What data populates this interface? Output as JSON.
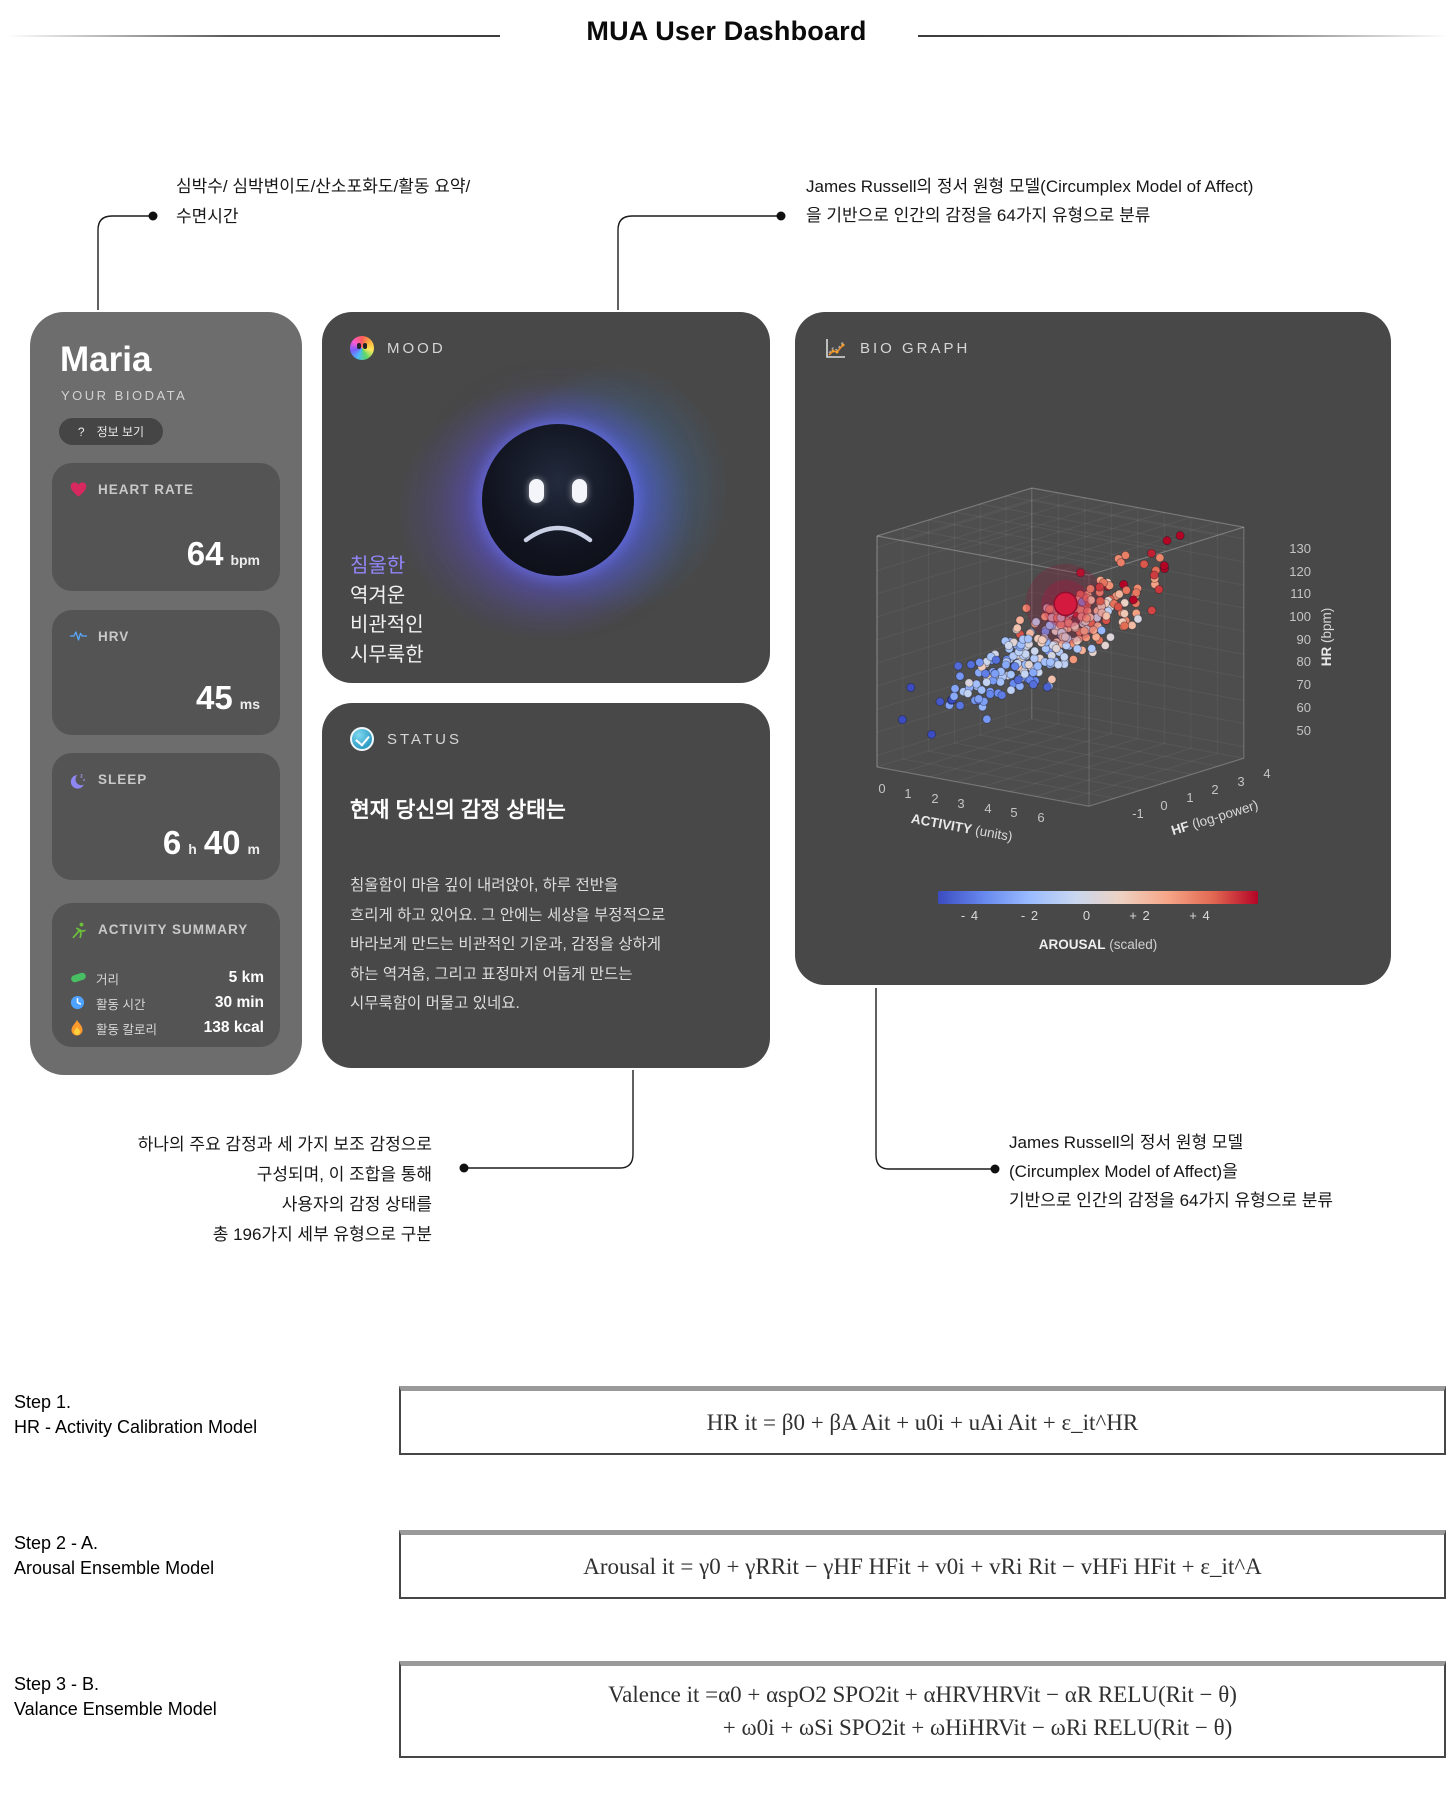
{
  "title": "MUA User Dashboard",
  "annotations": {
    "top_left": {
      "line1": "심박수/ 심박변이도/산소포화도/활동 요약/",
      "line2": "수면시간"
    },
    "top_right": {
      "line1": "James Russell의 정서 원형 모델(Circumplex Model of Affect)",
      "line2": "을 기반으로 인간의 감정을 64가지 유형으로 분류"
    },
    "bottom_left": {
      "line1": "하나의 주요 감정과 세 가지 보조 감정으로",
      "line2": "구성되며, 이 조합을 통해",
      "line3": "사용자의 감정 상태를",
      "line4": "총 196가지 세부 유형으로 구분"
    },
    "bottom_right": {
      "line1": "James Russell의 정서 원형 모델",
      "line2": "(Circumplex Model of Affect)을",
      "line3": "기반으로 인간의 감정을 64가지 유형으로 분류"
    }
  },
  "profile": {
    "name": "Maria",
    "subtitle": "YOUR BIODATA",
    "info_icon": "?",
    "info_label": "정보 보기",
    "heart": {
      "label": "HEART RATE",
      "value": "64",
      "unit": "bpm"
    },
    "hrv": {
      "label": "HRV",
      "value": "45",
      "unit": "ms"
    },
    "sleep": {
      "label": "SLEEP",
      "hours": "6",
      "h_unit": "h",
      "minutes": "40",
      "m_unit": "m"
    },
    "activity": {
      "label": "ACTIVITY SUMMARY",
      "rows": [
        {
          "label": "거리",
          "value": "5 km"
        },
        {
          "label": "활동 시간",
          "value": "30 min"
        },
        {
          "label": "활동 칼로리",
          "value": "138 kcal"
        }
      ]
    }
  },
  "mood": {
    "label": "MOOD",
    "words": [
      "침울한",
      "역겨운",
      "비관적인",
      "시무룩한"
    ],
    "highlight_color": "#9186f8"
  },
  "status": {
    "label": "STATUS",
    "heading": "현재 당신의 감정 상태는",
    "lines": [
      "침울함이 마음 깊이 내려앉아, 하루 전반을",
      "흐리게 하고 있어요. 그 안에는 세상을 부정적으로",
      "바라보게 만드는 비관적인 기운과, 감정을 상하게",
      "하는 역겨움, 그리고 표정마저 어둡게 만드는",
      "시무룩함이 머물고 있네요."
    ]
  },
  "bio": {
    "label": "BIO GRAPH"
  },
  "chart_data": {
    "type": "scatter3d",
    "title": "BIO GRAPH",
    "axes": {
      "x": {
        "label_main": "ACTIVITY",
        "label_sub": " (units)",
        "ticks": [
          "0",
          "1",
          "2",
          "3",
          "4",
          "5",
          "6"
        ],
        "range": [
          0,
          8
        ]
      },
      "y": {
        "label_main": "HF",
        "label_sub": " (log-power)",
        "ticks": [
          "-1",
          "0",
          "1",
          "2",
          "3",
          "4"
        ],
        "range": [
          -1,
          5
        ]
      },
      "z": {
        "label_main": "HR",
        "label_sub": " (bpm)",
        "ticks": [
          "130",
          "120",
          "110",
          "100",
          "90",
          "80",
          "70",
          "60",
          "50"
        ],
        "range": [
          35,
          135
        ]
      }
    },
    "colorbar": {
      "label_main": "AROUSAL",
      "label_sub": " (scaled)",
      "ticks": [
        "- 4",
        "- 2",
        "0",
        "+ 2",
        "+ 4"
      ],
      "range": [
        -4,
        4
      ],
      "stops": [
        "#3b4cc0",
        "#6788ee",
        "#9abbff",
        "#c9d7f0",
        "#edd1c2",
        "#f7a789",
        "#e26952",
        "#b40426"
      ]
    },
    "highlight": {
      "a": 4.0,
      "h": 2.2,
      "hr": 103,
      "color": "#d41a3f"
    },
    "generation": {
      "seed": 20,
      "count": 300,
      "a_mean": 3.8,
      "a_sd": 1.55,
      "h_mean": 2.0,
      "h_sd": 1.3,
      "hr_base": 48,
      "hr_per_a": 7.5,
      "hr_per_h": 6,
      "hr_noise": 7,
      "color_mid_hr": 88,
      "color_span": 30,
      "color_noise": 0.28
    }
  },
  "steps": [
    {
      "label1": "Step 1.",
      "label2": "HR - Activity Calibration Model",
      "eq1": "HR it = β0 + βA Ait + u0i + uAi Ait + ε_it^HR",
      "eq2": ""
    },
    {
      "label1": "Step 2 - A.",
      "label2": "Arousal Ensemble Model",
      "eq1": "Arousal it = γ0 + γRRit − γHF HFit + v0i + vRi Rit − vHFi HFit + ε_it^A",
      "eq2": ""
    },
    {
      "label1": "Step 3 - B.",
      "label2": "Valance Ensemble Model",
      "eq1": "Valence it =α0 + αspO2 SPO2it + αHRVHRVit − αR RELU(Rit − θ)",
      "eq2": "+ ω0i + ωSi SPO2it + ωHiHRVit − ωRi RELU(Rit − θ)"
    }
  ]
}
